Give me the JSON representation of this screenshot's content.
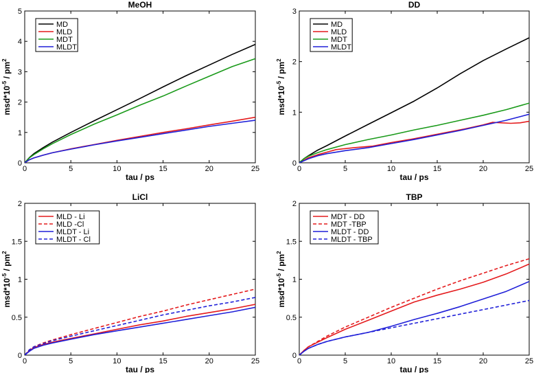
{
  "chart_data": [
    {
      "type": "line",
      "title": "MeOH",
      "xlabel": "tau / ps",
      "ylabel": "msd*10",
      "ylabel_exp": "-5",
      "ylabel_unit": " / pm",
      "ylabel_unit_exp": "2",
      "xlim": [
        0,
        25
      ],
      "ylim": [
        0,
        5
      ],
      "xticks": [
        0,
        5,
        10,
        15,
        20,
        25
      ],
      "yticks": [
        0,
        1,
        2,
        3,
        4,
        5
      ],
      "ytick_labels": [
        "0",
        "1",
        "2",
        "3",
        "4",
        "5"
      ],
      "legend_position": "top-left",
      "series": [
        {
          "name": "MD",
          "color": "#000000",
          "dash": false,
          "x": [
            0,
            0.5,
            1,
            2,
            3,
            5,
            7.5,
            10,
            12.5,
            15,
            17.5,
            20,
            22.5,
            25
          ],
          "values": [
            0,
            0.17,
            0.3,
            0.5,
            0.68,
            1.0,
            1.38,
            1.75,
            2.12,
            2.5,
            2.87,
            3.22,
            3.57,
            3.9
          ]
        },
        {
          "name": "MLD",
          "color": "#e41a1c",
          "dash": false,
          "x": [
            0,
            0.5,
            1,
            2,
            3,
            5,
            7.5,
            10,
            12.5,
            15,
            17.5,
            20,
            22.5,
            25
          ],
          "values": [
            0,
            0.1,
            0.16,
            0.25,
            0.33,
            0.46,
            0.6,
            0.74,
            0.87,
            1.0,
            1.12,
            1.25,
            1.37,
            1.5
          ]
        },
        {
          "name": "MDT",
          "color": "#1a9a1a",
          "dash": false,
          "x": [
            0,
            0.5,
            1,
            2,
            3,
            5,
            7.5,
            10,
            12.5,
            15,
            17.5,
            20,
            22.5,
            25
          ],
          "values": [
            0,
            0.16,
            0.27,
            0.46,
            0.63,
            0.93,
            1.27,
            1.58,
            1.9,
            2.2,
            2.53,
            2.85,
            3.17,
            3.43
          ]
        },
        {
          "name": "MLDT",
          "color": "#1f1fd8",
          "dash": false,
          "x": [
            0,
            0.5,
            1,
            2,
            3,
            5,
            7.5,
            10,
            12.5,
            15,
            17.5,
            20,
            22.5,
            25
          ],
          "values": [
            0,
            0.1,
            0.16,
            0.25,
            0.33,
            0.45,
            0.59,
            0.72,
            0.84,
            0.96,
            1.08,
            1.2,
            1.3,
            1.4
          ]
        }
      ]
    },
    {
      "type": "line",
      "title": "DD",
      "xlabel": "tau / ps",
      "ylabel": "msd*10",
      "ylabel_exp": "-5",
      "ylabel_unit": " / pm",
      "ylabel_unit_exp": "2",
      "xlim": [
        0,
        25
      ],
      "ylim": [
        0,
        3
      ],
      "xticks": [
        0,
        5,
        10,
        15,
        20,
        25
      ],
      "yticks": [
        0,
        1,
        2,
        3
      ],
      "ytick_labels": [
        "0",
        "1",
        "2",
        "3"
      ],
      "legend_position": "top-left",
      "series": [
        {
          "name": "MD",
          "color": "#000000",
          "dash": false,
          "x": [
            0,
            0.5,
            1,
            2,
            3,
            5,
            7.5,
            10,
            12.5,
            15,
            17.5,
            20,
            22.5,
            25
          ],
          "values": [
            0,
            0.08,
            0.14,
            0.25,
            0.34,
            0.53,
            0.76,
            0.99,
            1.22,
            1.48,
            1.76,
            2.02,
            2.25,
            2.47
          ]
        },
        {
          "name": "MLD",
          "color": "#e41a1c",
          "dash": false,
          "x": [
            0,
            1,
            2,
            3,
            4,
            6,
            8,
            10,
            12,
            14,
            16,
            18,
            20,
            21,
            22,
            23,
            24,
            25
          ],
          "values": [
            0,
            0.1,
            0.16,
            0.21,
            0.26,
            0.3,
            0.33,
            0.4,
            0.46,
            0.53,
            0.6,
            0.67,
            0.75,
            0.8,
            0.79,
            0.78,
            0.79,
            0.82
          ]
        },
        {
          "name": "MDT",
          "color": "#1a9a1a",
          "dash": false,
          "x": [
            0,
            0.5,
            1,
            2,
            3,
            5,
            7.5,
            10,
            12.5,
            15,
            17.5,
            20,
            22.5,
            25
          ],
          "values": [
            0,
            0.08,
            0.13,
            0.2,
            0.26,
            0.36,
            0.46,
            0.55,
            0.65,
            0.74,
            0.84,
            0.94,
            1.05,
            1.18
          ]
        },
        {
          "name": "MLDT",
          "color": "#1f1fd8",
          "dash": false,
          "x": [
            0,
            1,
            2,
            3,
            5,
            7.5,
            10,
            12.5,
            15,
            17.5,
            20,
            22.5,
            25
          ],
          "values": [
            0,
            0.08,
            0.14,
            0.18,
            0.24,
            0.3,
            0.38,
            0.46,
            0.55,
            0.64,
            0.74,
            0.84,
            0.96
          ]
        }
      ]
    },
    {
      "type": "line",
      "title": "LiCl",
      "xlabel": "tau / ps",
      "ylabel": "msd*10",
      "ylabel_exp": "-5",
      "ylabel_unit": " / pm",
      "ylabel_unit_exp": "2",
      "xlim": [
        0,
        25
      ],
      "ylim": [
        0,
        2
      ],
      "xticks": [
        0,
        5,
        10,
        15,
        20,
        25
      ],
      "yticks": [
        0,
        0.5,
        1,
        1.5,
        2
      ],
      "ytick_labels": [
        "0",
        "0.5",
        "1",
        "1.5",
        "2"
      ],
      "legend_position": "top-left",
      "series": [
        {
          "name": "MLD - Li",
          "color": "#e41a1c",
          "dash": false,
          "x": [
            0,
            0.5,
            1,
            2,
            3,
            5,
            7.5,
            10,
            12.5,
            15,
            17.5,
            20,
            22.5,
            25
          ],
          "values": [
            0,
            0.06,
            0.1,
            0.14,
            0.17,
            0.22,
            0.28,
            0.34,
            0.4,
            0.45,
            0.51,
            0.56,
            0.61,
            0.67
          ]
        },
        {
          "name": "MLD -Cl",
          "color": "#e41a1c",
          "dash": true,
          "x": [
            0,
            0.5,
            1,
            2,
            3,
            5,
            7.5,
            10,
            12.5,
            15,
            17.5,
            20,
            22.5,
            25
          ],
          "values": [
            0,
            0.07,
            0.11,
            0.16,
            0.2,
            0.27,
            0.35,
            0.43,
            0.51,
            0.58,
            0.66,
            0.73,
            0.8,
            0.87
          ]
        },
        {
          "name": "MLDT - Li",
          "color": "#1f1fd8",
          "dash": false,
          "x": [
            0,
            0.5,
            1,
            2,
            3,
            5,
            7.5,
            10,
            12.5,
            15,
            17.5,
            20,
            22.5,
            25
          ],
          "values": [
            0,
            0.05,
            0.09,
            0.13,
            0.16,
            0.21,
            0.27,
            0.32,
            0.37,
            0.42,
            0.47,
            0.52,
            0.57,
            0.63
          ]
        },
        {
          "name": "MLDT - Cl",
          "color": "#1f1fd8",
          "dash": true,
          "x": [
            0,
            0.5,
            1,
            2,
            3,
            5,
            7.5,
            10,
            12.5,
            15,
            17.5,
            20,
            22.5,
            25
          ],
          "values": [
            0,
            0.07,
            0.11,
            0.15,
            0.19,
            0.25,
            0.32,
            0.39,
            0.46,
            0.53,
            0.59,
            0.65,
            0.7,
            0.76
          ]
        }
      ]
    },
    {
      "type": "line",
      "title": "TBP",
      "xlabel": "tau / ps",
      "ylabel": "msd*10",
      "ylabel_exp": "-5",
      "ylabel_unit": " / pm",
      "ylabel_unit_exp": "2",
      "xlim": [
        0,
        25
      ],
      "ylim": [
        0,
        2
      ],
      "xticks": [
        0,
        5,
        10,
        15,
        20,
        25
      ],
      "yticks": [
        0,
        0.5,
        1,
        1.5,
        2
      ],
      "ytick_labels": [
        "0",
        "0.5",
        "1",
        "1.5",
        "2"
      ],
      "legend_position": "top-left",
      "series": [
        {
          "name": "MDT - DD",
          "color": "#e41a1c",
          "dash": false,
          "x": [
            0,
            0.5,
            1,
            2,
            3,
            5,
            7.5,
            10,
            12.5,
            15,
            17.5,
            20,
            22.5,
            25
          ],
          "values": [
            0,
            0.06,
            0.11,
            0.17,
            0.23,
            0.34,
            0.46,
            0.58,
            0.7,
            0.79,
            0.87,
            0.96,
            1.07,
            1.2
          ]
        },
        {
          "name": "MDT -TBP",
          "color": "#e41a1c",
          "dash": true,
          "x": [
            0,
            0.5,
            1,
            2,
            3,
            5,
            7.5,
            10,
            12.5,
            15,
            17.5,
            20,
            22.5,
            25
          ],
          "values": [
            0,
            0.06,
            0.11,
            0.18,
            0.25,
            0.37,
            0.5,
            0.63,
            0.75,
            0.87,
            0.98,
            1.08,
            1.18,
            1.27
          ]
        },
        {
          "name": "MLDT - DD",
          "color": "#1f1fd8",
          "dash": false,
          "x": [
            0,
            0.5,
            1,
            2,
            3,
            5,
            7.5,
            10,
            12.5,
            15,
            17.5,
            20,
            22.5,
            25
          ],
          "values": [
            0,
            0.05,
            0.09,
            0.14,
            0.18,
            0.24,
            0.3,
            0.38,
            0.47,
            0.55,
            0.64,
            0.74,
            0.84,
            0.97
          ]
        },
        {
          "name": "MLDT - TBP",
          "color": "#1f1fd8",
          "dash": true,
          "x": [
            0,
            0.5,
            1,
            2,
            3,
            5,
            7.5,
            10,
            12.5,
            15,
            17.5,
            20,
            22.5,
            25
          ],
          "values": [
            0,
            0.05,
            0.09,
            0.14,
            0.18,
            0.24,
            0.3,
            0.36,
            0.42,
            0.48,
            0.54,
            0.6,
            0.66,
            0.72
          ]
        }
      ]
    }
  ]
}
